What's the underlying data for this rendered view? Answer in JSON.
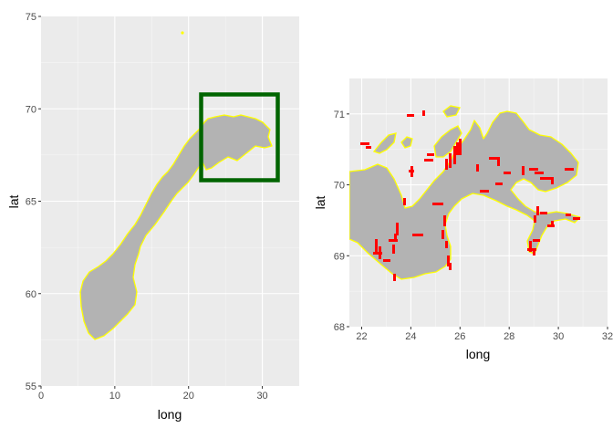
{
  "chart_data": [
    {
      "type": "map",
      "region": "Norway",
      "xlabel": "long",
      "ylabel": "lat",
      "xlim": [
        0,
        35
      ],
      "ylim": [
        55,
        75
      ],
      "x_ticks": [
        "0",
        "10",
        "20",
        "30"
      ],
      "y_ticks": [
        "55",
        "60",
        "65",
        "70",
        "75"
      ],
      "land_fill": "#b3b3b3",
      "coast_color": "#ffff00",
      "highlight_box": {
        "long_range": [
          21.5,
          32
        ],
        "lat_range": [
          68,
          71.8
        ],
        "color": "#006400"
      }
    },
    {
      "type": "map",
      "region": "Northern Norway (zoom)",
      "xlabel": "long",
      "ylabel": "lat",
      "xlim": [
        21.5,
        32
      ],
      "ylim": [
        68,
        71.5
      ],
      "x_ticks": [
        "22",
        "24",
        "26",
        "28",
        "30",
        "32"
      ],
      "y_ticks": [
        "68",
        "69",
        "70",
        "71"
      ],
      "land_fill": "#b3b3b3",
      "coast_color": "#ffff00",
      "marker_color": "#ff0000"
    }
  ]
}
